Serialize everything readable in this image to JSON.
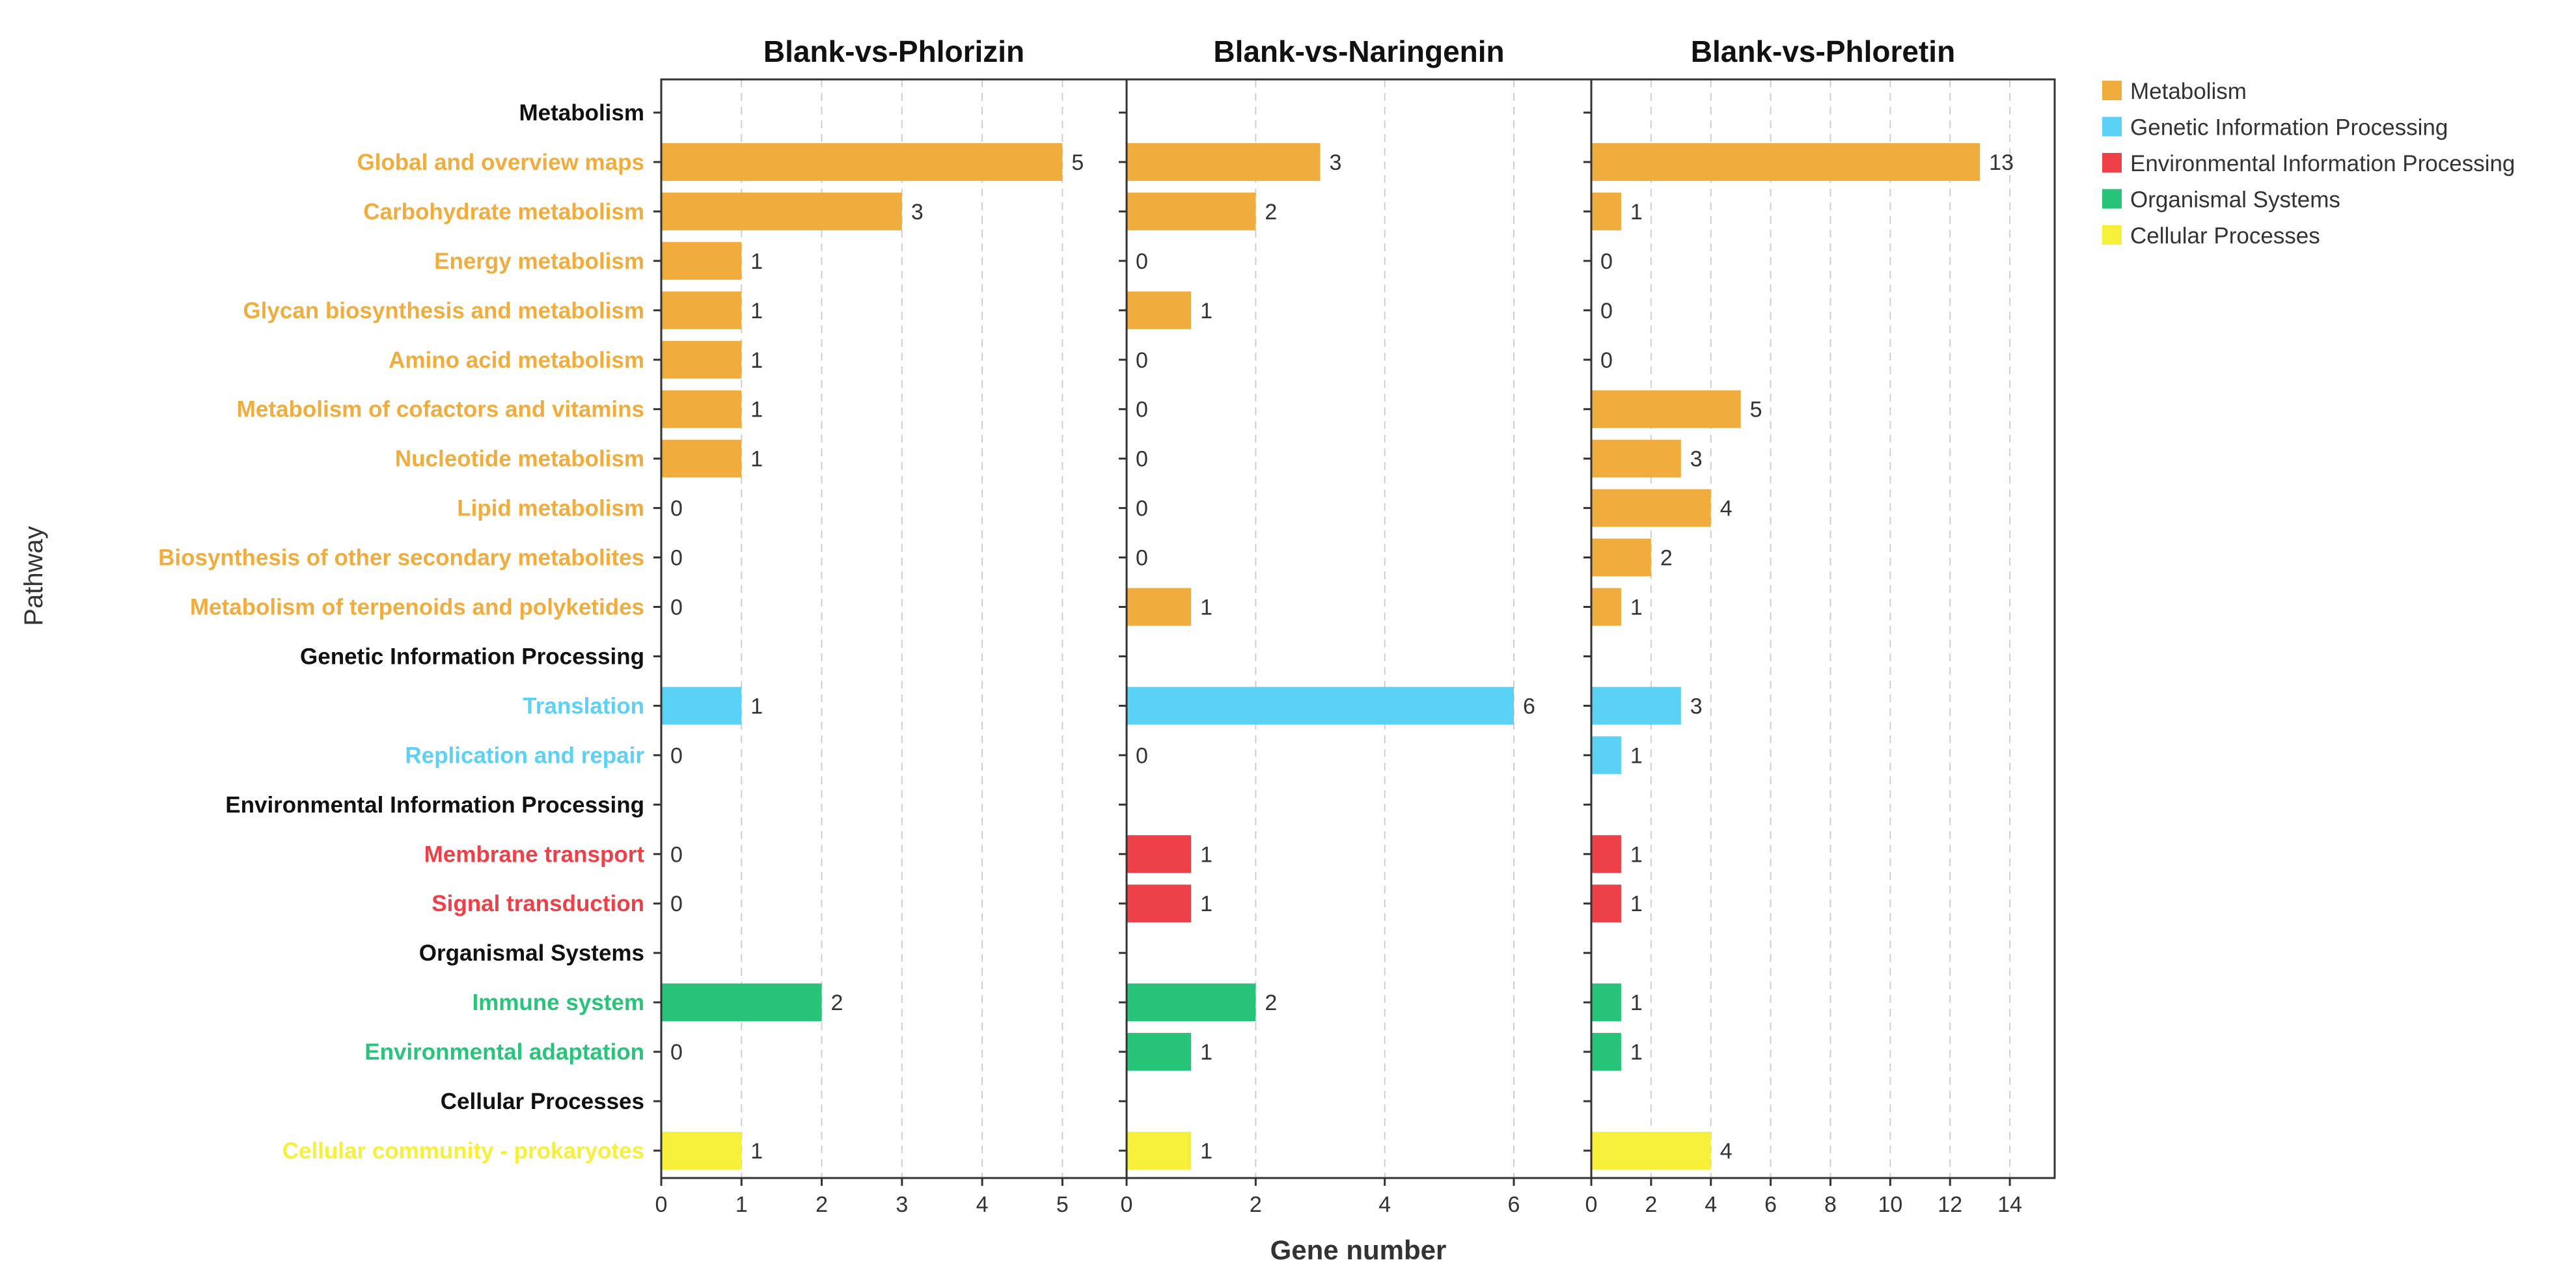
{
  "chart_data": {
    "type": "bar",
    "orientation": "horizontal",
    "ylabel": "Pathway",
    "xlabel": "Gene number",
    "grid": "vertical dashed",
    "legend_position": "top-right",
    "categories": [
      "Metabolism",
      "Global and overview maps",
      "Carbohydrate metabolism",
      "Energy metabolism",
      "Glycan biosynthesis and metabolism",
      "Amino acid metabolism",
      "Metabolism of cofactors and vitamins",
      "Nucleotide metabolism",
      "Lipid metabolism",
      "Biosynthesis of other secondary metabolites",
      "Metabolism of terpenoids and polyketides",
      "Genetic Information Processing",
      "Translation",
      "Replication and repair",
      "Environmental Information Processing",
      "Membrane transport",
      "Signal transduction",
      "Organismal Systems",
      "Immune system",
      "Environmental adaptation",
      "Cellular Processes",
      "Cellular community - prokaryotes"
    ],
    "category_group": [
      null,
      "Metabolism",
      "Metabolism",
      "Metabolism",
      "Metabolism",
      "Metabolism",
      "Metabolism",
      "Metabolism",
      "Metabolism",
      "Metabolism",
      "Metabolism",
      null,
      "Genetic Information Processing",
      "Genetic Information Processing",
      null,
      "Environmental Information Processing",
      "Environmental Information Processing",
      null,
      "Organismal Systems",
      "Organismal Systems",
      null,
      "Cellular Processes"
    ],
    "legend": [
      {
        "name": "Metabolism",
        "color": "#F0AD3D"
      },
      {
        "name": "Genetic Information Processing",
        "color": "#5BD2F5"
      },
      {
        "name": "Environmental Information Processing",
        "color": "#EE4049"
      },
      {
        "name": "Organismal Systems",
        "color": "#28C47A"
      },
      {
        "name": "Cellular Processes",
        "color": "#F7F03A"
      }
    ],
    "header_color": "#111111",
    "panels": [
      {
        "title": "Blank-vs-Phlorizin",
        "xlim": [
          0,
          5.8
        ],
        "xticks": [
          0,
          1,
          2,
          3,
          4,
          5
        ],
        "values": [
          null,
          5,
          3,
          1,
          1,
          1,
          1,
          1,
          0,
          0,
          0,
          null,
          1,
          0,
          null,
          0,
          0,
          null,
          2,
          0,
          null,
          1
        ]
      },
      {
        "title": "Blank-vs-Naringenin",
        "xlim": [
          0,
          7.2
        ],
        "xticks": [
          0,
          2,
          4,
          6
        ],
        "values": [
          null,
          3,
          2,
          0,
          1,
          0,
          0,
          0,
          0,
          0,
          1,
          null,
          6,
          0,
          null,
          1,
          1,
          null,
          2,
          1,
          null,
          1
        ]
      },
      {
        "title": "Blank-vs-Phloretin",
        "xlim": [
          0,
          15.5
        ],
        "xticks": [
          0,
          2,
          4,
          6,
          8,
          10,
          12,
          14
        ],
        "values": [
          null,
          13,
          1,
          0,
          0,
          0,
          5,
          3,
          4,
          2,
          1,
          null,
          3,
          1,
          null,
          1,
          1,
          null,
          1,
          1,
          null,
          4
        ]
      }
    ]
  }
}
